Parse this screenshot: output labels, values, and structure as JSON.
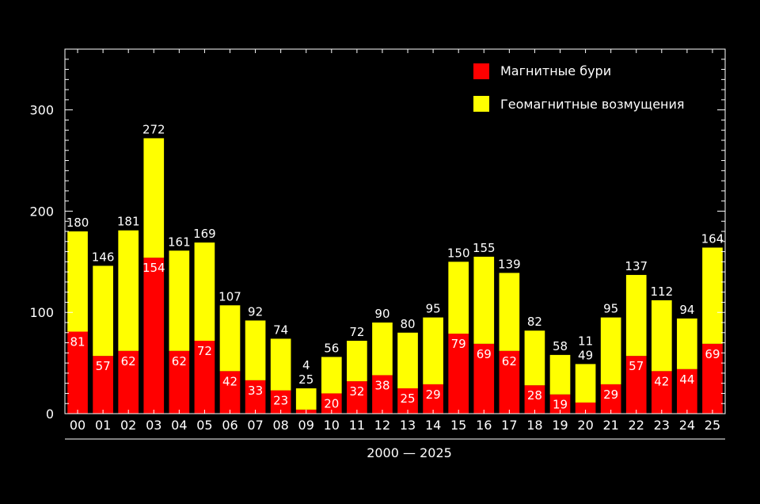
{
  "chart_data": {
    "type": "bar",
    "stacked": true,
    "title": "",
    "xlabel": "2000 — 2025",
    "ylabel": "",
    "ylim": [
      0,
      360
    ],
    "yticks": [
      0,
      100,
      200,
      300
    ],
    "grid": false,
    "legend_position": "top-right",
    "categories": [
      "00",
      "01",
      "02",
      "03",
      "04",
      "05",
      "06",
      "07",
      "08",
      "09",
      "10",
      "11",
      "12",
      "13",
      "14",
      "15",
      "16",
      "17",
      "18",
      "19",
      "20",
      "21",
      "22",
      "23",
      "24",
      "25"
    ],
    "series": [
      {
        "name": "Магнитные бури",
        "color": "#ff0000",
        "values": [
          81,
          57,
          62,
          154,
          62,
          72,
          42,
          33,
          23,
          4,
          20,
          32,
          38,
          25,
          29,
          79,
          69,
          62,
          28,
          19,
          11,
          29,
          57,
          42,
          44,
          69
        ]
      },
      {
        "name": "Геомагнитные возмущения",
        "color": "#ffff00",
        "values": [
          99,
          89,
          119,
          118,
          99,
          97,
          65,
          59,
          51,
          21,
          36,
          40,
          52,
          55,
          66,
          71,
          86,
          77,
          54,
          39,
          38,
          66,
          80,
          70,
          50,
          95
        ]
      }
    ],
    "totals": [
      180,
      146,
      181,
      272,
      161,
      169,
      107,
      92,
      74,
      25,
      56,
      72,
      90,
      80,
      95,
      150,
      155,
      139,
      82,
      58,
      49,
      95,
      137,
      112,
      94,
      164
    ]
  }
}
